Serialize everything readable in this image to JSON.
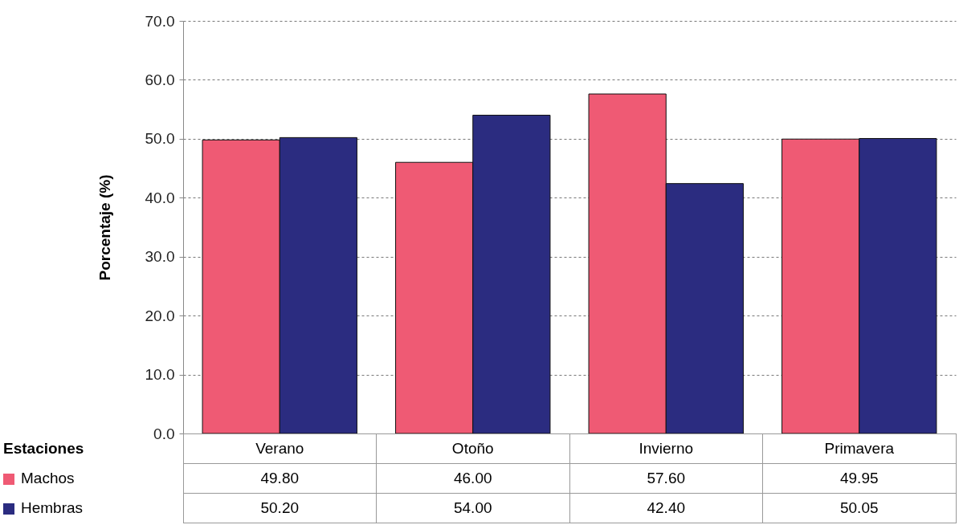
{
  "chart_data": {
    "type": "bar",
    "ylabel": "Porcentaje (%)",
    "xlabel": "Estaciones",
    "categories": [
      "Verano",
      "Otoño",
      "Invierno",
      "Primavera"
    ],
    "series": [
      {
        "name": "Machos",
        "color": "#ef5a74",
        "values": [
          49.8,
          46.0,
          57.6,
          49.95
        ],
        "value_labels": [
          "49.80",
          "46.00",
          "57.60",
          "49.95"
        ]
      },
      {
        "name": "Hembras",
        "color": "#2b2c80",
        "values": [
          50.2,
          54.0,
          42.4,
          50.05
        ],
        "value_labels": [
          "50.20",
          "54.00",
          "42.40",
          "50.05"
        ]
      }
    ],
    "ylim": [
      0,
      70
    ],
    "yticks": [
      {
        "value": 0,
        "label": "0.0"
      },
      {
        "value": 10,
        "label": "10.0"
      },
      {
        "value": 20,
        "label": "20.0"
      },
      {
        "value": 30,
        "label": "30.0"
      },
      {
        "value": 40,
        "label": "40.0"
      },
      {
        "value": 50,
        "label": "50.0"
      },
      {
        "value": 60,
        "label": "60.0"
      },
      {
        "value": 70,
        "label": "70.0"
      }
    ],
    "grid": "y",
    "legend": "bottom"
  }
}
